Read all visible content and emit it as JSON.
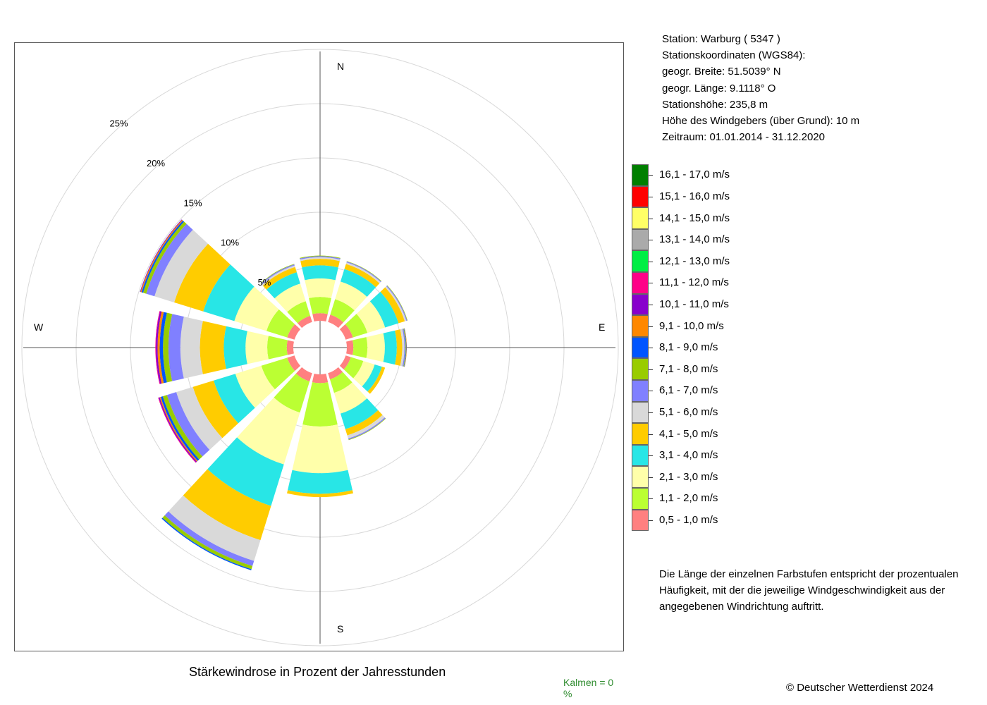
{
  "station": {
    "line1": "Station:  Warburg  ( 5347 )",
    "line2": "Stationskoordinaten (WGS84):",
    "line3": "geogr. Breite: 51.5039° N",
    "line4": "geogr. Länge:   9.1118° O",
    "line5": "Stationshöhe: 235,8 m",
    "line6": "Höhe des Windgebers (über Grund): 10 m",
    "line7": "Zeitraum: 01.01.2014 - 31.12.2020"
  },
  "title": "Stärkewindrose in Prozent der Jahresstunden",
  "calm": "Kalmen  =  0 %",
  "copyright": "© Deutscher Wetterdienst  2024",
  "note": "Die Länge der einzelnen Farbstufen entspricht der prozentualen Häufigkeit, mit der die jeweilige Windgeschwindigkeit aus der angegebenen Windrichtung auftritt.",
  "legend": [
    {
      "label": "16,1 - 17,0 m/s",
      "color": "#007f00"
    },
    {
      "label": "15,1 - 16,0 m/s",
      "color": "#ff0000"
    },
    {
      "label": "14,1 - 15,0 m/s",
      "color": "#ffff66"
    },
    {
      "label": "13,1 - 14,0 m/s",
      "color": "#aaaaaa"
    },
    {
      "label": "12,1 - 13,0 m/s",
      "color": "#00ee44"
    },
    {
      "label": "11,1 - 12,0 m/s",
      "color": "#ff0088"
    },
    {
      "label": "10,1 - 11,0 m/s",
      "color": "#8800cc"
    },
    {
      "label": "9,1 - 10,0 m/s",
      "color": "#ff8800"
    },
    {
      "label": "8,1 - 9,0 m/s",
      "color": "#0055ff"
    },
    {
      "label": "7,1 - 8,0 m/s",
      "color": "#99cc00"
    },
    {
      "label": "6,1 - 7,0 m/s",
      "color": "#8080ff"
    },
    {
      "label": "5,1 - 6,0 m/s",
      "color": "#d9d9d9"
    },
    {
      "label": "4,1 - 5,0 m/s",
      "color": "#ffcc00"
    },
    {
      "label": "3,1 - 4,0 m/s",
      "color": "#28e6e6"
    },
    {
      "label": "2,1 - 3,0 m/s",
      "color": "#ffffaa"
    },
    {
      "label": "1,1 - 2,0 m/s",
      "color": "#bbff33"
    },
    {
      "label": "0,5 - 1,0 m/s",
      "color": "#ff8080"
    }
  ],
  "chart_data": {
    "type": "windrose",
    "unit": "%",
    "rings": [
      5,
      10,
      15,
      20,
      25
    ],
    "ring_labels": [
      "5%",
      "10%",
      "15%",
      "20%",
      "25%"
    ],
    "direction_labels": {
      "N": "N",
      "E": "E",
      "S": "S",
      "W": "W"
    },
    "sector_width_deg": 30,
    "inner_offset_pct": 0.0,
    "speed_classes_ascending": [
      "0,5 - 1,0 m/s",
      "1,1 - 2,0 m/s",
      "2,1 - 3,0 m/s",
      "3,1 - 4,0 m/s",
      "4,1 - 5,0 m/s",
      "5,1 - 6,0 m/s",
      "6,1 - 7,0 m/s",
      "7,1 - 8,0 m/s",
      "8,1 - 9,0 m/s",
      "9,1 - 10,0 m/s",
      "10,1 - 11,0 m/s",
      "11,1 - 12,0 m/s",
      "12,1 - 13,0 m/s",
      "13,1 - 14,0 m/s",
      "14,1 - 15,0 m/s",
      "15,1 - 16,0 m/s",
      "16,1 - 17,0 m/s"
    ],
    "sectors": [
      {
        "dir": 0,
        "values": [
          0.7,
          1.5,
          1.7,
          1.2,
          0.6,
          0.15,
          0.1,
          0.05
        ]
      },
      {
        "dir": 30,
        "values": [
          0.7,
          1.5,
          1.7,
          1.2,
          0.5,
          0.15,
          0.08,
          0.04
        ]
      },
      {
        "dir": 60,
        "values": [
          0.7,
          1.4,
          1.7,
          1.3,
          0.6,
          0.15,
          0.08,
          0.04
        ]
      },
      {
        "dir": 90,
        "values": [
          0.6,
          1.3,
          1.6,
          1.1,
          0.5,
          0.2,
          0.1,
          0.05,
          0.04,
          0.03
        ]
      },
      {
        "dir": 120,
        "values": [
          0.5,
          1.2,
          1.1,
          0.7,
          0.3
        ]
      },
      {
        "dir": 150,
        "values": [
          0.6,
          1.3,
          2.0,
          1.5,
          0.6,
          0.3,
          0.1,
          0.05
        ]
      },
      {
        "dir": 180,
        "values": [
          0.8,
          4.0,
          4.3,
          1.9,
          0.3
        ]
      },
      {
        "dir": 210,
        "values": [
          0.8,
          3.0,
          5.0,
          4.0,
          3.3,
          2.0,
          0.5,
          0.3,
          0.1
        ]
      },
      {
        "dir": 240,
        "values": [
          0.7,
          2.5,
          2.5,
          2.1,
          2.0,
          1.6,
          0.9,
          0.4,
          0.2,
          0.1,
          0.1,
          0.05
        ]
      },
      {
        "dir": 270,
        "values": [
          0.6,
          1.8,
          2.0,
          2.0,
          2.2,
          1.8,
          1.1,
          0.5,
          0.3,
          0.2,
          0.15,
          0.05
        ]
      },
      {
        "dir": 300,
        "values": [
          0.7,
          2.0,
          3.1,
          3.0,
          2.8,
          1.9,
          0.8,
          0.3,
          0.15,
          0.1,
          0.05
        ]
      },
      {
        "dir": 330,
        "values": [
          0.6,
          1.4,
          1.7,
          1.1,
          0.5,
          0.15,
          0.1,
          0.05
        ]
      }
    ]
  }
}
